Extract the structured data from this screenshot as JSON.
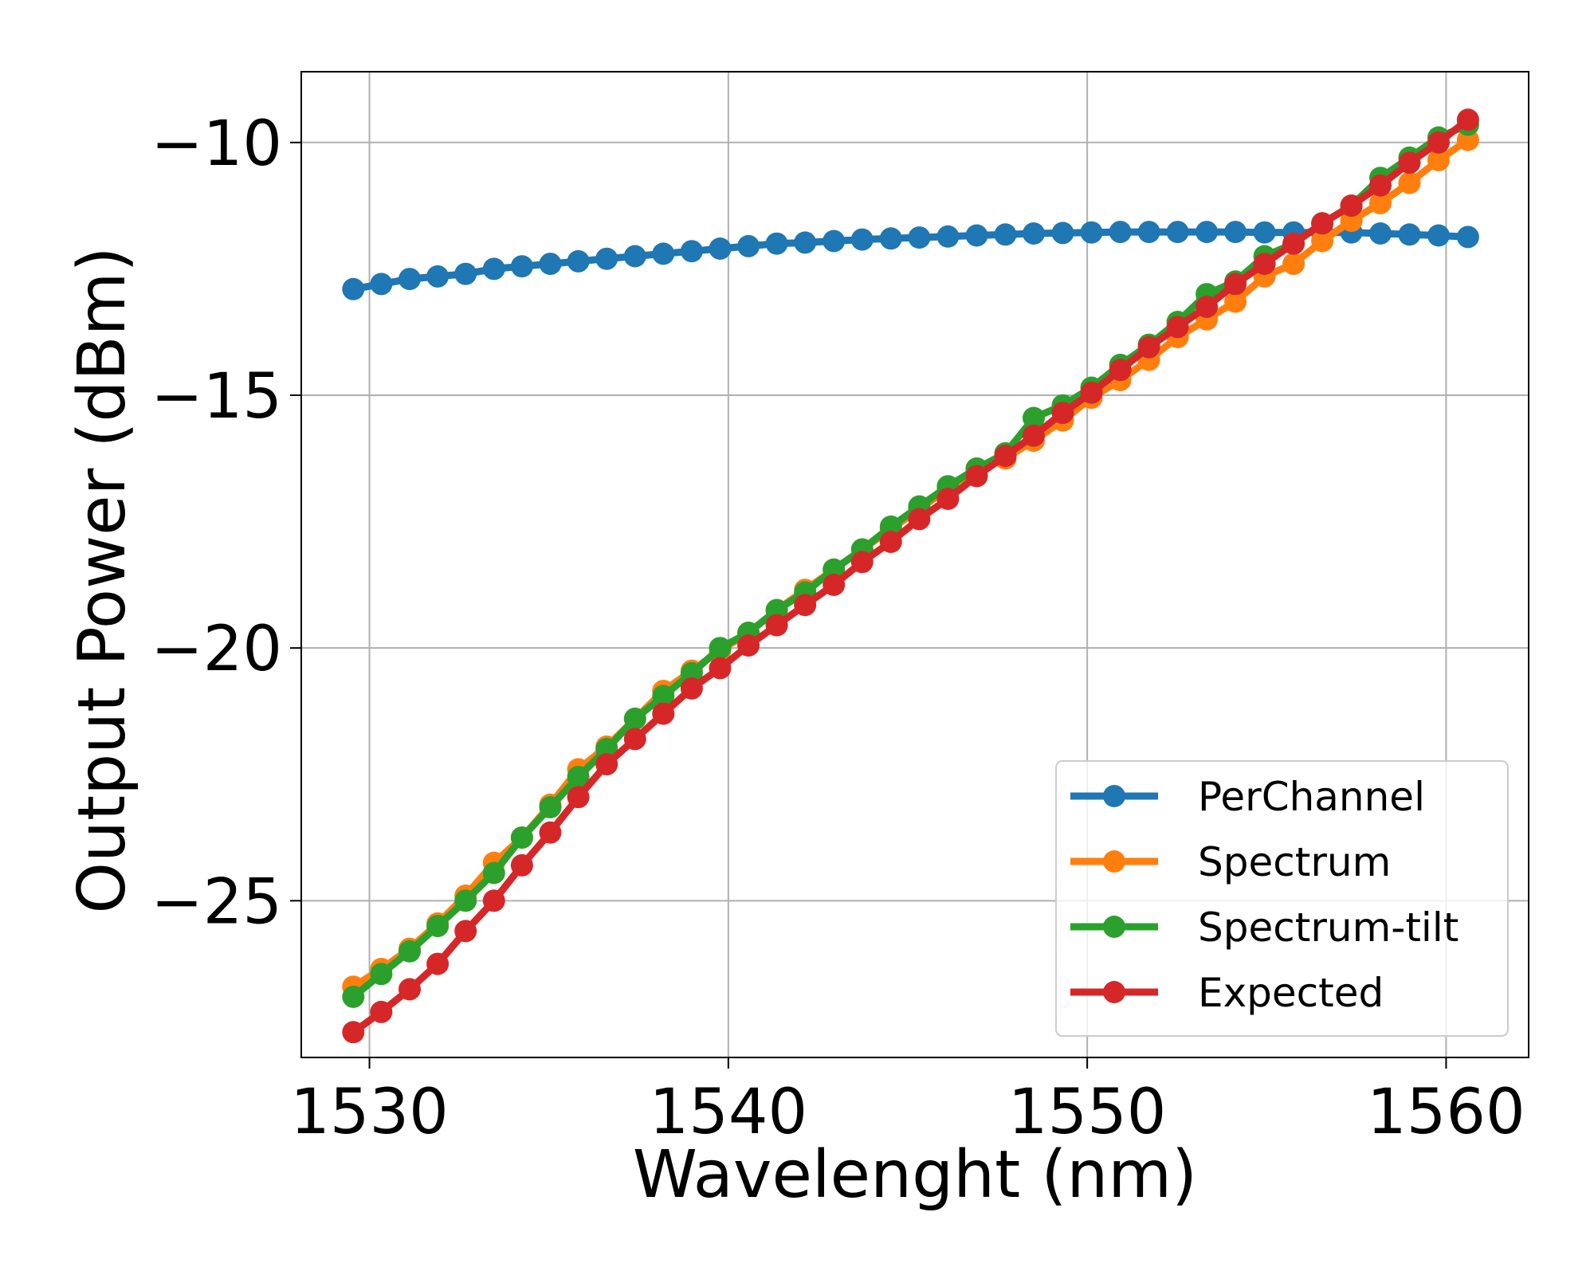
{
  "chart_data": {
    "type": "line",
    "xlabel": "Wavelenght (nm)",
    "ylabel": "Output Power (dBm)",
    "xlim": [
      1528.1,
      1562.3
    ],
    "ylim": [
      -28.1,
      -8.6
    ],
    "xticks": [
      1530,
      1540,
      1550,
      1560
    ],
    "xtick_labels": [
      "1530",
      "1540",
      "1550",
      "1560"
    ],
    "yticks": [
      -25,
      -20,
      -15,
      -10
    ],
    "ytick_labels": [
      "−25",
      "−20",
      "−15",
      "−10"
    ],
    "grid": true,
    "legend_position": "lower-right",
    "x": [
      1529.55,
      1530.33,
      1531.12,
      1531.9,
      1532.68,
      1533.47,
      1534.25,
      1535.04,
      1535.82,
      1536.61,
      1537.4,
      1538.19,
      1538.98,
      1539.77,
      1540.56,
      1541.35,
      1542.14,
      1542.94,
      1543.73,
      1544.53,
      1545.32,
      1546.12,
      1546.92,
      1547.72,
      1548.51,
      1549.32,
      1550.12,
      1550.92,
      1551.72,
      1552.52,
      1553.33,
      1554.13,
      1554.94,
      1555.75,
      1556.55,
      1557.36,
      1558.17,
      1558.98,
      1559.79,
      1560.61
    ],
    "series": [
      {
        "name": "PerChannel",
        "color": "#1f77b4",
        "values": [
          -12.9,
          -12.8,
          -12.7,
          -12.65,
          -12.6,
          -12.5,
          -12.45,
          -12.4,
          -12.35,
          -12.3,
          -12.25,
          -12.2,
          -12.15,
          -12.1,
          -12.05,
          -12.0,
          -11.98,
          -11.95,
          -11.92,
          -11.9,
          -11.88,
          -11.86,
          -11.84,
          -11.82,
          -11.8,
          -11.79,
          -11.78,
          -11.77,
          -11.77,
          -11.77,
          -11.77,
          -11.77,
          -11.78,
          -11.78,
          -11.78,
          -11.78,
          -11.8,
          -11.82,
          -11.84,
          -11.87
        ]
      },
      {
        "name": "Spectrum",
        "color": "#ff7f0e",
        "values": [
          -26.7,
          -26.35,
          -25.95,
          -25.45,
          -24.9,
          -24.25,
          -23.75,
          -23.1,
          -22.4,
          -21.95,
          -21.4,
          -20.85,
          -20.45,
          -20.05,
          -19.7,
          -19.25,
          -18.85,
          -18.45,
          -18.05,
          -17.65,
          -17.25,
          -16.85,
          -16.45,
          -16.25,
          -15.9,
          -15.5,
          -15.05,
          -14.7,
          -14.3,
          -13.85,
          -13.5,
          -13.15,
          -12.65,
          -12.4,
          -11.95,
          -11.55,
          -11.2,
          -10.8,
          -10.35,
          -9.95
        ]
      },
      {
        "name": "Spectrum-tilt",
        "color": "#2ca02c",
        "values": [
          -26.9,
          -26.45,
          -26.0,
          -25.5,
          -25.0,
          -24.45,
          -23.75,
          -23.15,
          -22.55,
          -22.0,
          -21.4,
          -20.95,
          -20.5,
          -20.0,
          -19.7,
          -19.25,
          -18.9,
          -18.45,
          -18.05,
          -17.6,
          -17.2,
          -16.8,
          -16.45,
          -16.15,
          -15.45,
          -15.2,
          -14.85,
          -14.4,
          -14.0,
          -13.55,
          -13.0,
          -12.75,
          -12.25,
          -12.0,
          -11.6,
          -11.25,
          -10.7,
          -10.3,
          -9.9,
          -9.65
        ]
      },
      {
        "name": "Expected",
        "color": "#d62728",
        "values": [
          -27.6,
          -27.2,
          -26.75,
          -26.25,
          -25.6,
          -25.0,
          -24.3,
          -23.65,
          -22.95,
          -22.3,
          -21.8,
          -21.3,
          -20.8,
          -20.4,
          -19.95,
          -19.55,
          -19.15,
          -18.75,
          -18.3,
          -17.9,
          -17.45,
          -17.05,
          -16.6,
          -16.2,
          -15.8,
          -15.35,
          -14.95,
          -14.5,
          -14.05,
          -13.65,
          -13.25,
          -12.8,
          -12.4,
          -12.0,
          -11.6,
          -11.25,
          -10.85,
          -10.4,
          -10.0,
          -9.55
        ]
      }
    ]
  }
}
